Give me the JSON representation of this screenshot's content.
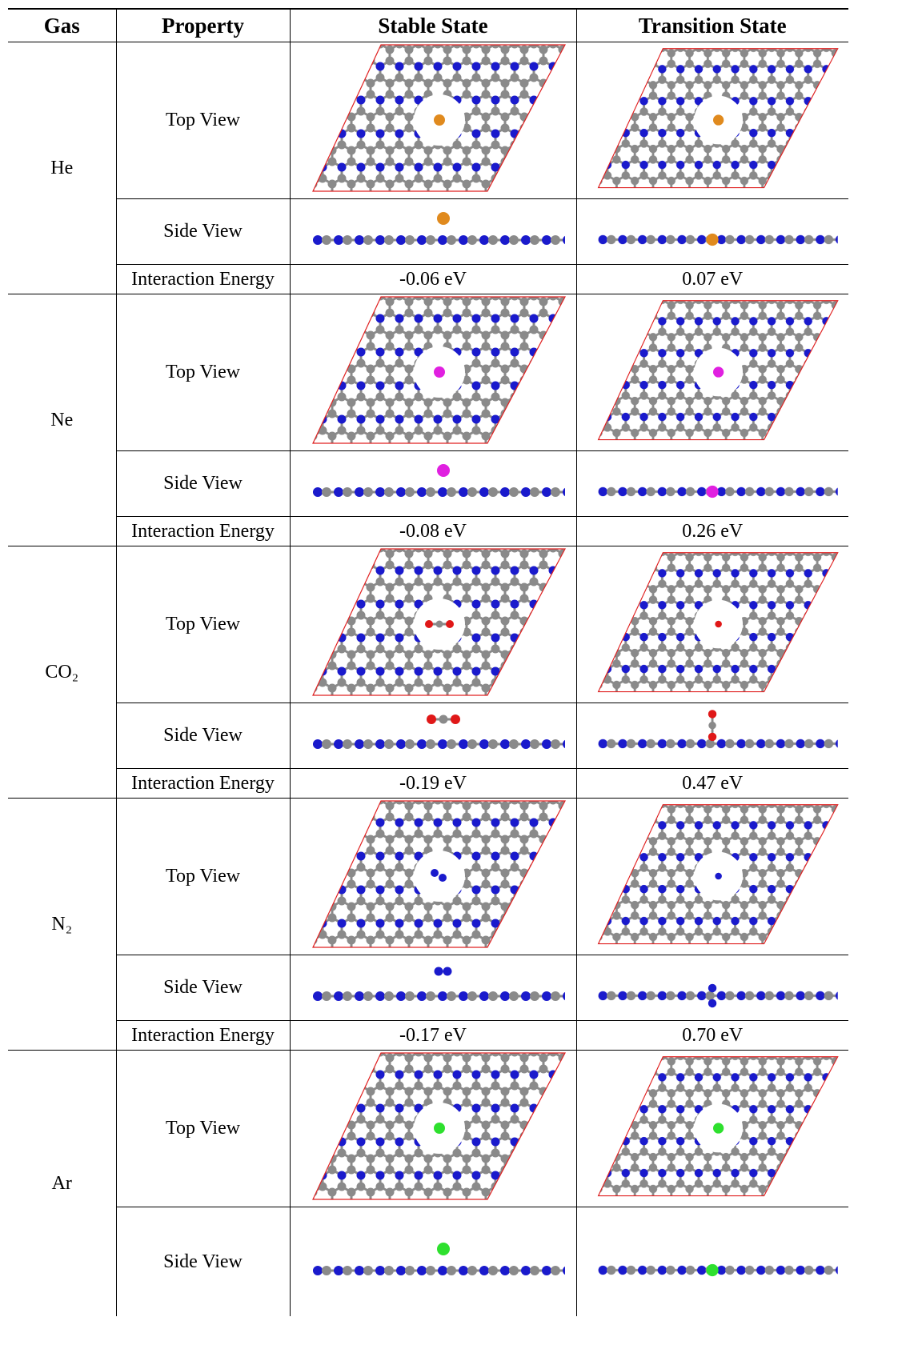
{
  "table": {
    "header": [
      "Gas",
      "Property",
      "Stable State",
      "Transition State"
    ],
    "rows": [
      {
        "gas": "He",
        "properties": [
          "Top View",
          "Side View",
          "Interaction Energy"
        ],
        "stable_energy": "-0.06 eV",
        "transition_energy": "0.07 eV"
      },
      {
        "gas": "Ne",
        "properties": [
          "Top View",
          "Side View",
          "Interaction Energy"
        ],
        "stable_energy": "-0.08 eV",
        "transition_energy": "0.26 eV"
      },
      {
        "gas": "CO₂",
        "properties": [
          "Top View",
          "Side View",
          "Interaction Energy"
        ],
        "stable_energy": "-0.19 eV",
        "transition_energy": "0.47 eV"
      },
      {
        "gas": "N₂",
        "properties": [
          "Top View",
          "Side View",
          "Interaction Energy"
        ],
        "stable_energy": "-0.17 eV",
        "transition_energy": "0.70 eV"
      },
      {
        "gas": "Ar",
        "properties": [
          "Top View",
          "Side View"
        ]
      }
    ]
  }
}
